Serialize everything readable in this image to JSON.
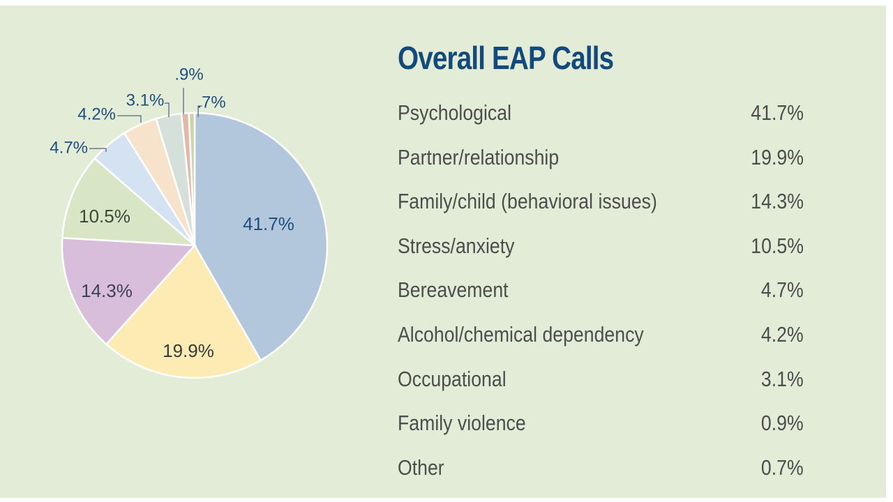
{
  "chart_data": {
    "type": "pie",
    "title": "Overall EAP Calls",
    "slices": [
      {
        "label": "Psychological",
        "value": 41.7,
        "pie_label": "41.7%",
        "legend_value": "41.7%",
        "color": "#b3c7dc",
        "label_color": "#1f4f7e"
      },
      {
        "label": "Partner/relationship",
        "value": 19.9,
        "pie_label": "19.9%",
        "legend_value": "19.9%",
        "color": "#fcecb4",
        "label_color": "#3a3a3a"
      },
      {
        "label": "Family/child (behavioral issues)",
        "value": 14.3,
        "pie_label": "14.3%",
        "legend_value": "14.3%",
        "color": "#d9bedc",
        "label_color": "#3f3f5a"
      },
      {
        "label": "Stress/anxiety",
        "value": 10.5,
        "pie_label": "10.5%",
        "legend_value": "10.5%",
        "color": "#d9e6c6",
        "label_color": "#3a4a3a"
      },
      {
        "label": "Bereavement",
        "value": 4.7,
        "pie_label": "4.7%",
        "legend_value": "4.7%",
        "color": "#d4e2f2",
        "label_color": "#1f4f7e"
      },
      {
        "label": "Alcohol/chemical dependency",
        "value": 4.2,
        "pie_label": "4.2%",
        "legend_value": "4.2%",
        "color": "#f7e3cc",
        "label_color": "#1f4f7e"
      },
      {
        "label": "Occupational",
        "value": 3.1,
        "pie_label": "3.1%",
        "legend_value": "3.1%",
        "color": "#d5e0db",
        "label_color": "#1f4f7e"
      },
      {
        "label": "Family violence",
        "value": 0.9,
        "pie_label": ".9%",
        "legend_value": "0.9%",
        "color": "#e2b8a6",
        "label_color": "#1f4f7e"
      },
      {
        "label": "Other",
        "value": 0.7,
        "pie_label": ".7%",
        "legend_value": "0.7%",
        "color": "#c9d6a8",
        "label_color": "#1f4f7e"
      }
    ],
    "legend_placement": "right"
  }
}
